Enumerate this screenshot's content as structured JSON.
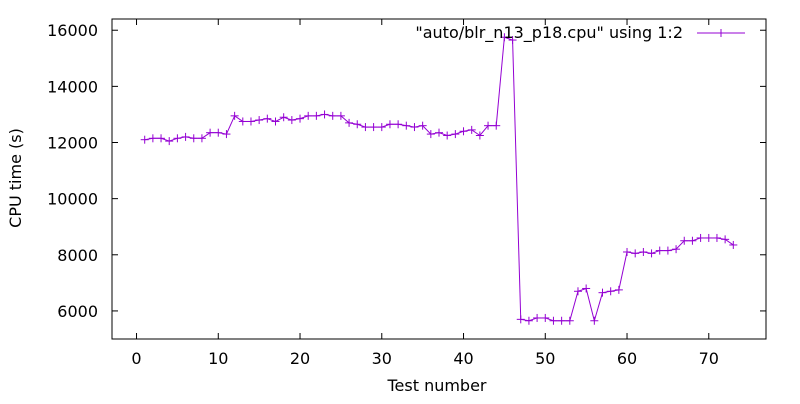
{
  "chart_data": {
    "type": "line",
    "title": "",
    "xlabel": "Test number",
    "ylabel": "CPU time (s)",
    "xlim": [
      -3,
      77
    ],
    "ylim": [
      5000,
      16400
    ],
    "xticks": [
      0,
      10,
      20,
      30,
      40,
      50,
      60,
      70
    ],
    "yticks": [
      6000,
      8000,
      10000,
      12000,
      14000,
      16000
    ],
    "xtick_labels": [
      "0",
      "10",
      "20",
      "30",
      "40",
      "50",
      "60",
      "70"
    ],
    "ytick_labels": [
      "6000",
      "8000",
      "10000",
      "12000",
      "14000",
      "16000"
    ],
    "grid": false,
    "legend_position": "top-right",
    "series": [
      {
        "name": "\"auto/blr_n13_p18.cpu\" using 1:2",
        "color": "#9400d3",
        "marker": "plus",
        "x": [
          1,
          2,
          3,
          4,
          5,
          6,
          7,
          8,
          9,
          10,
          11,
          12,
          13,
          14,
          15,
          16,
          17,
          18,
          19,
          20,
          21,
          22,
          23,
          24,
          25,
          26,
          27,
          28,
          29,
          30,
          31,
          32,
          33,
          34,
          35,
          36,
          37,
          38,
          39,
          40,
          41,
          42,
          43,
          44,
          45,
          46,
          47,
          48,
          49,
          50,
          51,
          52,
          53,
          54,
          55,
          56,
          57,
          58,
          59,
          60,
          61,
          62,
          63,
          64,
          65,
          66,
          67,
          68,
          69,
          70,
          71,
          72,
          73
        ],
        "y": [
          12100,
          12150,
          12150,
          12050,
          12150,
          12200,
          12150,
          12150,
          12350,
          12350,
          12300,
          12950,
          12750,
          12750,
          12800,
          12850,
          12750,
          12900,
          12800,
          12850,
          12950,
          12950,
          13000,
          12950,
          12950,
          12700,
          12650,
          12550,
          12550,
          12550,
          12650,
          12650,
          12600,
          12550,
          12600,
          12300,
          12350,
          12250,
          12300,
          12400,
          12450,
          12250,
          12600,
          12600,
          15750,
          15650,
          5700,
          5650,
          5750,
          5750,
          5650,
          5650,
          5650,
          6700,
          6800,
          5650,
          6650,
          6700,
          6750,
          8100,
          8050,
          8100,
          8050,
          8150,
          8150,
          8200,
          8500,
          8500,
          8600,
          8600,
          8600,
          8550,
          8350
        ]
      }
    ]
  }
}
